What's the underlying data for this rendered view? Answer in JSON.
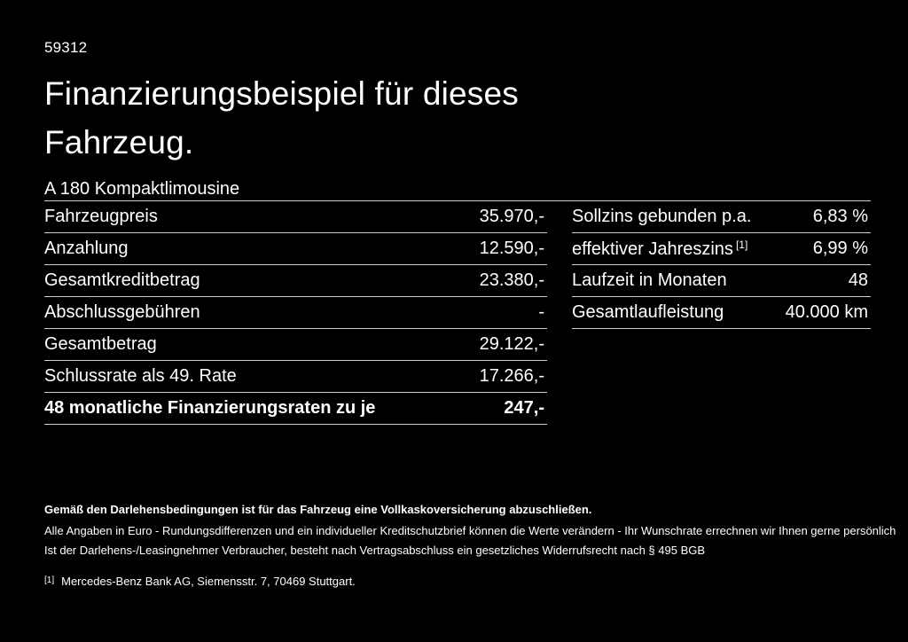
{
  "page": {
    "background_color": "#000000",
    "text_color": "#ffffff",
    "divider_color": "#cfcfcf"
  },
  "header": {
    "reference_number": "59312",
    "title_line1": "Finanzierungsbeispiel für dieses",
    "title_line2": "Fahrzeug.",
    "subtitle": "A 180 Kompaktlimousine"
  },
  "finance_table": {
    "rows": [
      {
        "label": "Fahrzeugpreis",
        "value": "35.970,-"
      },
      {
        "label": "Anzahlung",
        "value": "12.590,-"
      },
      {
        "label": "Gesamtkreditbetrag",
        "value": "23.380,-"
      },
      {
        "label": "Abschlussgebühren",
        "value": "-"
      },
      {
        "label": "Gesamtbetrag",
        "value": "29.122,-"
      },
      {
        "label": "Schlussrate als 49. Rate",
        "value": "17.266,-"
      },
      {
        "label": "48 monatliche Finanzierungsraten zu je",
        "value": "247,-"
      }
    ]
  },
  "conditions_table": {
    "rows": [
      {
        "label": "Sollzins gebunden p.a.",
        "sup": "",
        "value": "6,83 %"
      },
      {
        "label": "effektiver Jahreszins",
        "sup": "[1]",
        "value": "6,99 %"
      },
      {
        "label": "Laufzeit in Monaten",
        "sup": "",
        "value": "48"
      },
      {
        "label": "Gesamtlaufleistung",
        "sup": "",
        "value": "40.000 km"
      }
    ]
  },
  "footer": {
    "insurance_note": "Gemäß den Darlehensbedingungen ist für das Fahrzeug eine Vollkaskoversicherung abzuschließen.",
    "disclaimer_line1": "Alle Angaben in Euro - Rundungsdifferenzen und ein individueller Kreditschutzbrief können die Werte verändern - Ihr Wunschrate errechnen wir Ihnen gerne persönlich",
    "disclaimer_line2": "Ist der Darlehens-/Leasingnehmer Verbraucher, besteht nach Vertragsabschluss ein gesetzliches Widerrufsrecht nach § 495 BGB",
    "footnote_marker": "[1]",
    "footnote_text": "Mercedes-Benz Bank AG, Siemensstr. 7, 70469 Stuttgart."
  }
}
